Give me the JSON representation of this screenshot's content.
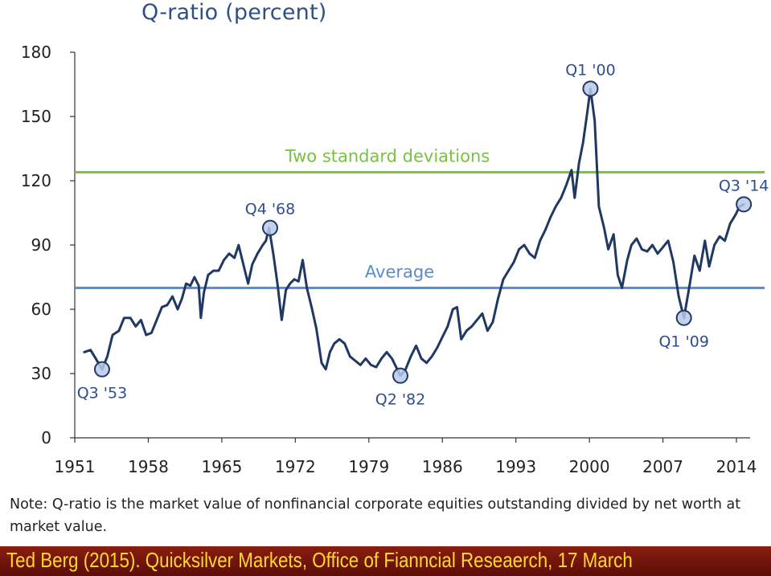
{
  "chart_data": {
    "type": "line",
    "title": "Q-ratio (percent)",
    "xlabel": "",
    "ylabel": "",
    "xlim": [
      1951,
      2015.3
    ],
    "ylim": [
      0,
      180
    ],
    "x_ticks": [
      "1951",
      "1958",
      "1965",
      "1972",
      "1979",
      "1986",
      "1993",
      "2000",
      "2007",
      "2014"
    ],
    "y_ticks": [
      "0",
      "30",
      "60",
      "90",
      "120",
      "150",
      "180"
    ],
    "grid": false,
    "colors": {
      "series": "#1f3864",
      "average": "#5b8ac9",
      "two_sd": "#7ac143",
      "label": "#2f4e8c",
      "marker": "#b9c9e6"
    },
    "reference_lines": [
      {
        "label": "Two standard deviations",
        "value": 124
      },
      {
        "label": "Average",
        "value": 70
      }
    ],
    "series": [
      {
        "values": [
          [
            1951.9,
            40
          ],
          [
            1952.5,
            41
          ],
          [
            1953.0,
            37
          ],
          [
            1953.6,
            32
          ],
          [
            1954.1,
            38
          ],
          [
            1954.6,
            48
          ],
          [
            1955.2,
            50
          ],
          [
            1955.7,
            56
          ],
          [
            1956.3,
            56
          ],
          [
            1956.8,
            52
          ],
          [
            1957.3,
            55
          ],
          [
            1957.8,
            48
          ],
          [
            1958.3,
            49
          ],
          [
            1958.8,
            55
          ],
          [
            1959.3,
            61
          ],
          [
            1959.8,
            62
          ],
          [
            1960.3,
            66
          ],
          [
            1960.8,
            60
          ],
          [
            1961.2,
            65
          ],
          [
            1961.6,
            72
          ],
          [
            1962.0,
            71
          ],
          [
            1962.4,
            75
          ],
          [
            1962.8,
            71
          ],
          [
            1963.0,
            56
          ],
          [
            1963.3,
            68
          ],
          [
            1963.7,
            76
          ],
          [
            1964.2,
            78
          ],
          [
            1964.7,
            78
          ],
          [
            1965.2,
            83
          ],
          [
            1965.7,
            86
          ],
          [
            1966.2,
            84
          ],
          [
            1966.6,
            90
          ],
          [
            1967.0,
            82
          ],
          [
            1967.5,
            72
          ],
          [
            1967.9,
            81
          ],
          [
            1968.4,
            86
          ],
          [
            1968.9,
            90
          ],
          [
            1969.2,
            92
          ],
          [
            1969.5,
            98
          ],
          [
            1969.9,
            86
          ],
          [
            1970.3,
            72
          ],
          [
            1970.7,
            55
          ],
          [
            1971.1,
            69
          ],
          [
            1971.5,
            72
          ],
          [
            1971.9,
            74
          ],
          [
            1972.3,
            73
          ],
          [
            1972.7,
            83
          ],
          [
            1973.1,
            70
          ],
          [
            1973.6,
            60
          ],
          [
            1974.0,
            51
          ],
          [
            1974.5,
            35
          ],
          [
            1974.9,
            32
          ],
          [
            1975.3,
            40
          ],
          [
            1975.7,
            44
          ],
          [
            1976.2,
            46
          ],
          [
            1976.7,
            44
          ],
          [
            1977.2,
            38
          ],
          [
            1977.7,
            36
          ],
          [
            1978.2,
            34
          ],
          [
            1978.7,
            37
          ],
          [
            1979.2,
            34
          ],
          [
            1979.7,
            33
          ],
          [
            1980.2,
            37
          ],
          [
            1980.7,
            40
          ],
          [
            1981.2,
            37
          ],
          [
            1981.7,
            32
          ],
          [
            1982.0,
            29
          ],
          [
            1982.5,
            32
          ],
          [
            1983.0,
            38
          ],
          [
            1983.5,
            43
          ],
          [
            1984.0,
            37
          ],
          [
            1984.5,
            35
          ],
          [
            1985.0,
            38
          ],
          [
            1985.5,
            42
          ],
          [
            1986.0,
            47
          ],
          [
            1986.5,
            52
          ],
          [
            1987.0,
            60
          ],
          [
            1987.4,
            61
          ],
          [
            1987.8,
            46
          ],
          [
            1988.3,
            50
          ],
          [
            1988.8,
            52
          ],
          [
            1989.3,
            55
          ],
          [
            1989.8,
            58
          ],
          [
            1990.3,
            50
          ],
          [
            1990.8,
            54
          ],
          [
            1991.3,
            65
          ],
          [
            1991.8,
            74
          ],
          [
            1992.3,
            78
          ],
          [
            1992.8,
            82
          ],
          [
            1993.3,
            88
          ],
          [
            1993.8,
            90
          ],
          [
            1994.3,
            86
          ],
          [
            1994.8,
            84
          ],
          [
            1995.3,
            92
          ],
          [
            1995.8,
            97
          ],
          [
            1996.3,
            103
          ],
          [
            1996.8,
            108
          ],
          [
            1997.3,
            112
          ],
          [
            1997.8,
            118
          ],
          [
            1998.3,
            125
          ],
          [
            1998.6,
            112
          ],
          [
            1999.0,
            128
          ],
          [
            1999.4,
            138
          ],
          [
            1999.8,
            152
          ],
          [
            2000.1,
            163
          ],
          [
            2000.5,
            148
          ],
          [
            2000.9,
            108
          ],
          [
            2001.4,
            98
          ],
          [
            2001.8,
            88
          ],
          [
            2002.3,
            95
          ],
          [
            2002.7,
            76
          ],
          [
            2003.1,
            70
          ],
          [
            2003.6,
            83
          ],
          [
            2004.0,
            90
          ],
          [
            2004.5,
            93
          ],
          [
            2005.0,
            88
          ],
          [
            2005.5,
            87
          ],
          [
            2006.0,
            90
          ],
          [
            2006.5,
            86
          ],
          [
            2007.0,
            89
          ],
          [
            2007.5,
            92
          ],
          [
            2008.0,
            82
          ],
          [
            2008.5,
            66
          ],
          [
            2009.0,
            56
          ],
          [
            2009.5,
            70
          ],
          [
            2010.0,
            85
          ],
          [
            2010.5,
            78
          ],
          [
            2011.0,
            92
          ],
          [
            2011.4,
            80
          ],
          [
            2011.9,
            90
          ],
          [
            2012.4,
            94
          ],
          [
            2012.9,
            92
          ],
          [
            2013.4,
            100
          ],
          [
            2013.9,
            104
          ],
          [
            2014.3,
            108
          ],
          [
            2014.7,
            109
          ]
        ]
      }
    ],
    "annotations": [
      {
        "label": "Q3 '53",
        "x": 1953.6,
        "y": 32,
        "anchor": "below"
      },
      {
        "label": "Q4 '68",
        "x": 1969.6,
        "y": 98,
        "anchor": "above"
      },
      {
        "label": "Q2 '82",
        "x": 1982.0,
        "y": 29,
        "anchor": "below"
      },
      {
        "label": "Q1 '00",
        "x": 2000.1,
        "y": 163,
        "anchor": "above"
      },
      {
        "label": "Q1 '09",
        "x": 2009.0,
        "y": 56,
        "anchor": "below"
      },
      {
        "label": "Q3 '14",
        "x": 2014.7,
        "y": 109,
        "anchor": "above"
      }
    ]
  },
  "note": "Note: Q-ratio is the market value of nonfinancial corporate equities outstanding divided by net worth at market value.",
  "footer": "Ted Berg (2015). Quicksilver Markets, Office of Fianncial Reseaerch, 17 March"
}
